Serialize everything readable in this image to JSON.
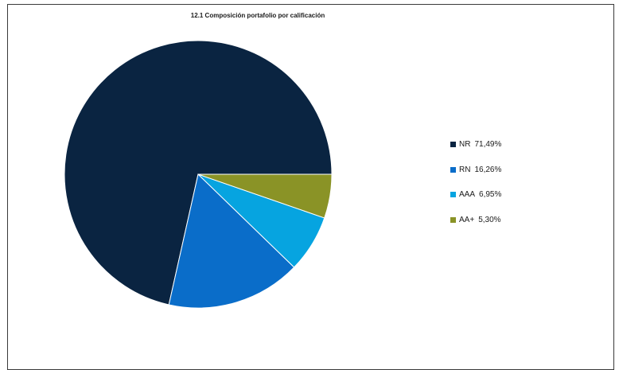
{
  "chart_data": {
    "type": "pie",
    "title": "12.1 Composición portafolio por calificación",
    "slices": [
      {
        "label": "NR",
        "value": 71.49,
        "value_text": "71,49%",
        "color": "#0a2441"
      },
      {
        "label": "RN",
        "value": 16.26,
        "value_text": "16,26%",
        "color": "#0a6dc9"
      },
      {
        "label": "AAA",
        "value": 6.95,
        "value_text": "6,95%",
        "color": "#06a4e0"
      },
      {
        "label": "AA+",
        "value": 5.3,
        "value_text": "5,30%",
        "color": "#8a9326"
      }
    ],
    "legend_position": "right",
    "start": "3 o'clock, counter-clockwise"
  }
}
